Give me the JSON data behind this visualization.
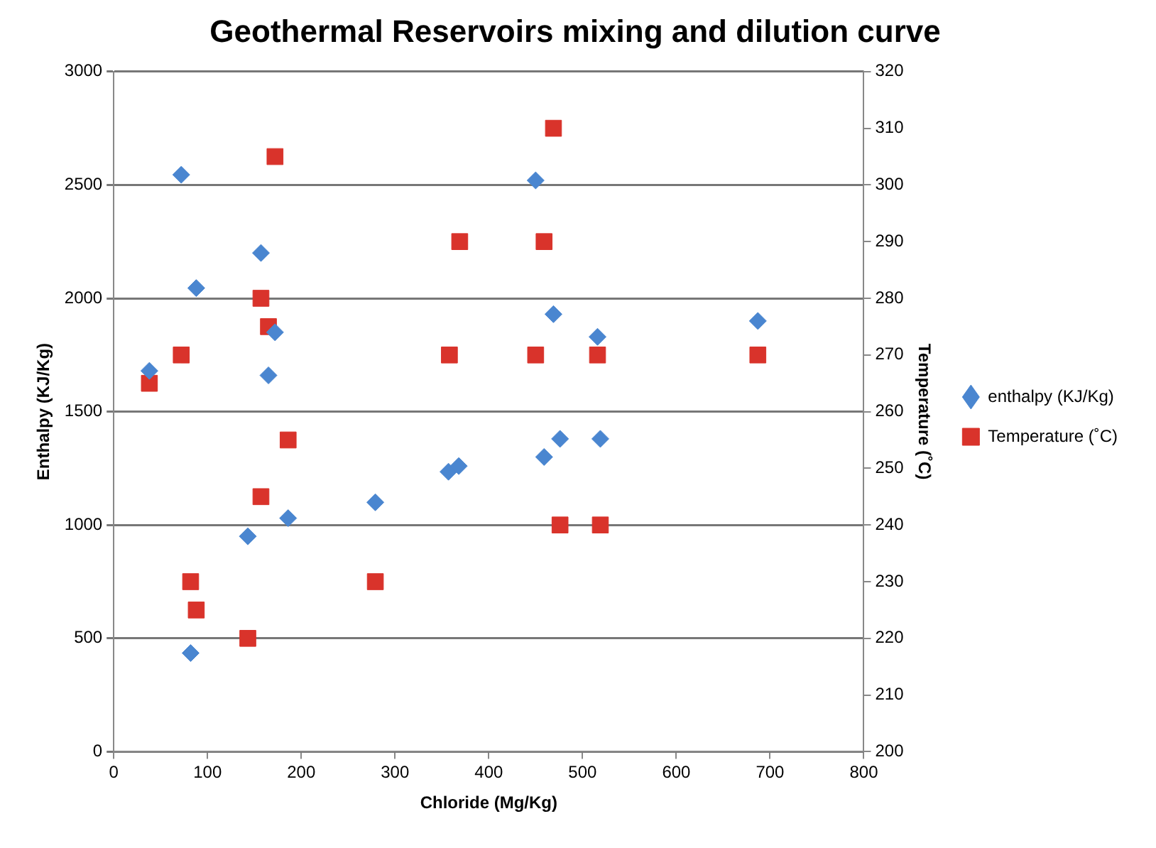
{
  "chart_data": {
    "type": "scatter",
    "title": "Geothermal Reservoirs mixing and dilution curve",
    "xlabel": "Chloride (Mg/Kg)",
    "ylabel": "Enthalpy (KJ/Kg)",
    "y2label": "Temperature (˚C)",
    "xlim": [
      0,
      800
    ],
    "xticks": [
      0,
      100,
      200,
      300,
      400,
      500,
      600,
      700,
      800
    ],
    "ylim": [
      0,
      3000
    ],
    "yticks": [
      0,
      500,
      1000,
      1500,
      2000,
      2500,
      3000
    ],
    "y2lim": [
      200,
      320
    ],
    "y2ticks": [
      200,
      210,
      220,
      230,
      240,
      250,
      260,
      270,
      280,
      290,
      300,
      310,
      320
    ],
    "grid": "y",
    "legend": "right",
    "series": [
      {
        "name": "enthalpy (KJ/Kg)",
        "color": "#4a86d0",
        "marker": "diamond",
        "x": [
          38,
          72,
          82,
          88,
          143,
          157,
          165,
          172,
          186,
          279,
          357,
          368,
          450,
          459,
          469,
          476,
          516,
          519,
          687
        ],
        "values": [
          1680,
          2545,
          435,
          2045,
          950,
          2200,
          1660,
          1850,
          1030,
          1100,
          1235,
          1260,
          2520,
          1300,
          1930,
          1380,
          1830,
          1380,
          1900
        ]
      },
      {
        "name": "Temperature (˚C)",
        "color": "#d9332b",
        "marker": "square",
        "axis": "y2",
        "x": [
          38,
          72,
          82,
          88,
          143,
          157,
          157,
          165,
          172,
          186,
          279,
          358,
          369,
          450,
          459,
          469,
          476,
          516,
          519,
          687
        ],
        "values": [
          265,
          270,
          230,
          225,
          220,
          280,
          245,
          275,
          305,
          255,
          230,
          270,
          290,
          270,
          290,
          310,
          240,
          270,
          240,
          270
        ]
      }
    ]
  }
}
